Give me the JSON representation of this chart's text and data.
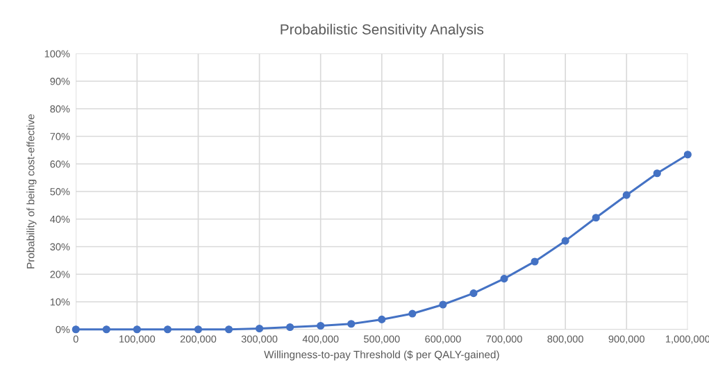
{
  "chart_data": {
    "type": "line",
    "title": "Probabilistic Sensitivity Analysis",
    "xlabel": "Willingness-to-pay Threshold ($ per QALY-gained)",
    "ylabel": "Probability of being cost-effective",
    "x": [
      0,
      50000,
      100000,
      150000,
      200000,
      250000,
      300000,
      350000,
      400000,
      450000,
      500000,
      550000,
      600000,
      650000,
      700000,
      750000,
      800000,
      850000,
      900000,
      950000,
      1000000
    ],
    "series": [
      {
        "color": "#4472c4",
        "values": [
          0,
          0,
          0,
          0,
          0,
          0,
          0.3,
          0.8,
          1.3,
          2.0,
          3.6,
          5.7,
          9.0,
          13.1,
          18.4,
          24.6,
          32.1,
          40.5,
          48.7,
          56.6,
          63.4
        ]
      }
    ],
    "xlim": [
      0,
      1000000
    ],
    "xticks": [
      0,
      {
        "value": 100000,
        "label": "100,000"
      },
      {
        "value": 200000,
        "label": "200,000"
      },
      {
        "value": 300000,
        "label": "300,000"
      },
      {
        "value": 400000,
        "label": "400,000"
      },
      {
        "value": 500000,
        "label": "500,000"
      },
      {
        "value": 600000,
        "label": "600,000"
      },
      {
        "value": 700000,
        "label": "700,000"
      },
      {
        "value": 800000,
        "label": "800,000"
      },
      {
        "value": 900000,
        "label": "900,000"
      },
      {
        "value": 1000000,
        "label": "1,000,000"
      }
    ],
    "ylim": [
      0,
      100
    ],
    "yticks": [
      {
        "value": 0,
        "label": "0%"
      },
      {
        "value": 10,
        "label": "10%"
      },
      {
        "value": 20,
        "label": "20%"
      },
      {
        "value": 30,
        "label": "30%"
      },
      {
        "value": 40,
        "label": "40%"
      },
      {
        "value": 50,
        "label": "50%"
      },
      {
        "value": 60,
        "label": "60%"
      },
      {
        "value": 70,
        "label": "70%"
      },
      {
        "value": 80,
        "label": "80%"
      },
      {
        "value": 90,
        "label": "90%"
      },
      {
        "value": 100,
        "label": "100%"
      }
    ],
    "grid": true,
    "marker": "circle",
    "line_style": "solid"
  }
}
